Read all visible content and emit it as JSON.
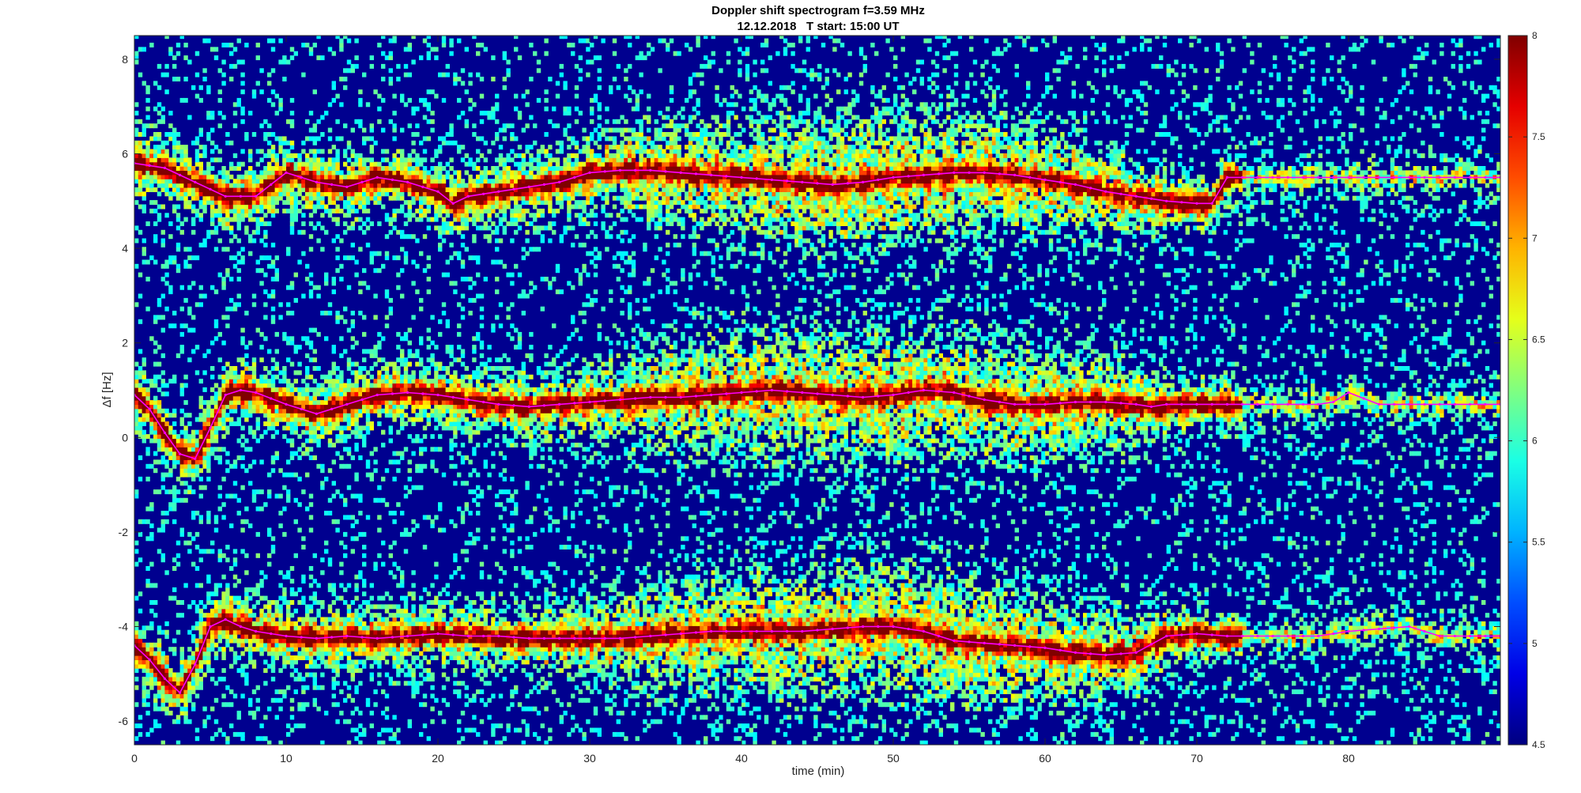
{
  "chart_data": {
    "type": "heatmap",
    "title": "Doppler shift spectrogram f=3.59 MHz",
    "subtitle": "12.12.2018   T start: 15:00 UT",
    "xlabel": "time (min)",
    "ylabel": "Δf [Hz]",
    "xlim": [
      0,
      90
    ],
    "ylim": [
      -6.5,
      8.5
    ],
    "xticks": [
      0,
      10,
      20,
      30,
      40,
      50,
      60,
      70,
      80
    ],
    "yticks": [
      -6,
      -4,
      -2,
      0,
      2,
      4,
      6,
      8
    ],
    "colorbar": {
      "colormap": "jet",
      "clim": [
        4.5,
        8
      ],
      "ticks": [
        4.5,
        5,
        5.5,
        6,
        6.5,
        7,
        7.5,
        8
      ]
    },
    "background_color": "#00008f",
    "traces": [
      {
        "color": "#ff00ff",
        "description": "upper mode",
        "x": [
          0,
          2,
          4,
          6,
          8,
          10,
          12,
          14,
          16,
          18,
          20,
          21,
          22,
          24,
          26,
          28,
          30,
          32,
          34,
          36,
          38,
          40,
          42,
          44,
          46,
          48,
          50,
          52,
          54,
          56,
          58,
          60,
          62,
          64,
          66,
          68,
          70,
          71,
          72,
          74,
          76,
          78,
          80,
          82,
          84,
          86,
          88,
          90
        ],
        "y": [
          5.8,
          5.7,
          5.4,
          5.1,
          5.1,
          5.6,
          5.4,
          5.3,
          5.5,
          5.4,
          5.2,
          4.95,
          5.1,
          5.2,
          5.3,
          5.4,
          5.6,
          5.65,
          5.65,
          5.6,
          5.55,
          5.5,
          5.45,
          5.4,
          5.35,
          5.4,
          5.5,
          5.55,
          5.6,
          5.6,
          5.55,
          5.45,
          5.35,
          5.2,
          5.1,
          5.0,
          4.95,
          4.95,
          5.5,
          5.5,
          5.5,
          5.5,
          5.5,
          5.5,
          5.5,
          5.5,
          5.5,
          5.5
        ]
      },
      {
        "color": "#ff00ff",
        "description": "middle mode",
        "x": [
          0,
          1,
          2,
          3,
          4,
          5,
          6,
          7,
          8,
          10,
          12,
          14,
          16,
          18,
          20,
          22,
          24,
          26,
          28,
          30,
          32,
          34,
          36,
          38,
          40,
          42,
          44,
          46,
          48,
          50,
          52,
          54,
          56,
          58,
          60,
          62,
          64,
          66,
          67,
          68,
          70,
          72,
          74,
          76,
          78,
          79,
          80,
          82,
          84,
          86,
          88,
          90
        ],
        "y": [
          0.9,
          0.6,
          0.1,
          -0.35,
          -0.45,
          0.2,
          0.9,
          1.0,
          0.95,
          0.7,
          0.5,
          0.7,
          0.9,
          0.95,
          0.9,
          0.8,
          0.7,
          0.65,
          0.7,
          0.75,
          0.8,
          0.85,
          0.85,
          0.9,
          0.95,
          1.0,
          0.95,
          0.9,
          0.85,
          0.9,
          1.0,
          0.95,
          0.8,
          0.7,
          0.7,
          0.75,
          0.75,
          0.7,
          0.65,
          0.7,
          0.7,
          0.7,
          0.7,
          0.7,
          0.7,
          0.75,
          0.95,
          0.7,
          0.7,
          0.7,
          0.7,
          0.7
        ]
      },
      {
        "color": "#ff00ff",
        "description": "lower mode",
        "x": [
          0,
          1,
          2,
          3,
          4,
          5,
          6,
          7,
          8,
          10,
          12,
          14,
          16,
          18,
          20,
          22,
          24,
          26,
          28,
          30,
          32,
          34,
          36,
          38,
          40,
          42,
          44,
          46,
          48,
          50,
          52,
          54,
          56,
          58,
          60,
          62,
          64,
          66,
          68,
          70,
          72,
          74,
          76,
          78,
          80,
          82,
          84,
          86,
          88,
          90
        ],
        "y": [
          -4.4,
          -4.7,
          -5.1,
          -5.4,
          -4.8,
          -4.0,
          -3.85,
          -4.0,
          -4.1,
          -4.2,
          -4.25,
          -4.2,
          -4.25,
          -4.2,
          -4.15,
          -4.2,
          -4.2,
          -4.25,
          -4.25,
          -4.25,
          -4.25,
          -4.2,
          -4.15,
          -4.1,
          -4.1,
          -4.1,
          -4.1,
          -4.05,
          -4.0,
          -4.0,
          -4.1,
          -4.3,
          -4.35,
          -4.4,
          -4.45,
          -4.55,
          -4.6,
          -4.55,
          -4.2,
          -4.15,
          -4.2,
          -4.2,
          -4.2,
          -4.2,
          -4.1,
          -4.05,
          -4.0,
          -4.2,
          -4.2,
          -4.2
        ]
      }
    ]
  }
}
